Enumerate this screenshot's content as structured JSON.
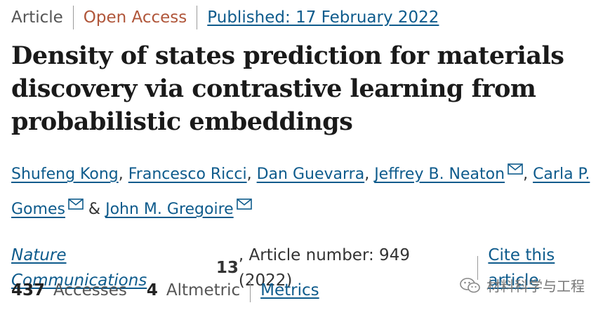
{
  "meta": {
    "article_type": "Article",
    "access": "Open Access",
    "published": "Published: 17 February 2022"
  },
  "title": "Density of states prediction for materials discovery via contrastive learning from probabilistic embeddings",
  "authors": [
    {
      "name": "Shufeng Kong",
      "after": ", "
    },
    {
      "name": "Francesco Ricci",
      "after": ", "
    },
    {
      "name": "Dan Guevarra",
      "after": ", "
    },
    {
      "name": "Jeffrey B. Neaton",
      "after": ", "
    },
    {
      "name": "Carla P. Gomes",
      "after": " & "
    },
    {
      "name": "John M. Gregoire",
      "after": ""
    }
  ],
  "citation": {
    "journal": "Nature Communications",
    "volume": "13",
    "article_number": ", Article number: 949 (2022)",
    "cite_link": "Cite this article"
  },
  "metrics": {
    "accesses_count": "437",
    "accesses_label": "Accesses",
    "altmetric_count": "4",
    "altmetric_label": "Altmetric",
    "metrics_link": "Metrics"
  },
  "watermark": {
    "text": "材料科学与工程",
    "icon": "wechat-icon"
  },
  "colors": {
    "link": "#0e5b8c",
    "open_access": "#b0563a"
  }
}
